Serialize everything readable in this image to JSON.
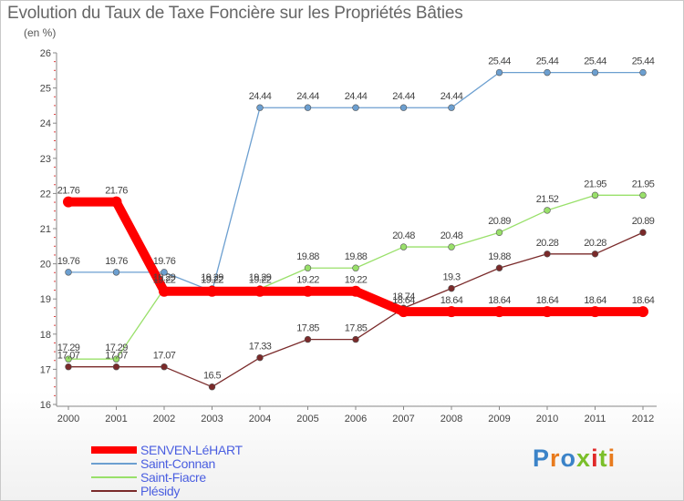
{
  "chart_data": {
    "type": "line",
    "title": "Evolution du Taux de Taxe Foncière sur les Propriétés Bâties",
    "unit_label": "(en %)",
    "x": [
      "2000",
      "2001",
      "2002",
      "2003",
      "2004",
      "2005",
      "2006",
      "2007",
      "2008",
      "2009",
      "2010",
      "2011",
      "2012"
    ],
    "ylim": [
      16,
      26
    ],
    "yticks": [
      "16",
      "17",
      "18",
      "19",
      "20",
      "21",
      "22",
      "23",
      "24",
      "25",
      "26"
    ],
    "grid": false,
    "legend_position": "bottom-left",
    "series": [
      {
        "name": "SENVEN-LéHART",
        "color": "#ff0000",
        "values": [
          21.76,
          21.76,
          19.22,
          19.22,
          19.22,
          19.22,
          19.22,
          18.64,
          18.64,
          18.64,
          18.64,
          18.64,
          18.64
        ],
        "labels": [
          "21.76",
          "21.76",
          "19.22",
          "19.22",
          "19.22",
          "19.22",
          "19.22",
          "18.64",
          "18.64",
          "18.64",
          "18.64",
          "18.64",
          "18.64"
        ]
      },
      {
        "name": "Saint-Connan",
        "color": "#6c9fd0",
        "values": [
          19.76,
          19.76,
          19.76,
          19.22,
          24.44,
          24.44,
          24.44,
          24.44,
          24.44,
          25.44,
          25.44,
          25.44,
          25.44
        ],
        "labels": [
          "19.76",
          "19.76",
          "19.76",
          "19.22",
          "24.44",
          "24.44",
          "24.44",
          "24.44",
          "24.44",
          "25.44",
          "25.44",
          "25.44",
          "25.44"
        ]
      },
      {
        "name": "Saint-Fiacre",
        "color": "#99e06a",
        "values": [
          17.29,
          17.29,
          19.29,
          19.29,
          19.29,
          19.88,
          19.88,
          20.48,
          20.48,
          20.89,
          21.52,
          21.95,
          21.95
        ],
        "labels": [
          "17.29",
          "17.29",
          "19.29",
          "19.29",
          "19.29",
          "19.88",
          "19.88",
          "20.48",
          "20.48",
          "20.89",
          "21.52",
          "21.95",
          "21.95"
        ]
      },
      {
        "name": "Plésidy",
        "color": "#7a2a2a",
        "values": [
          17.07,
          17.07,
          17.07,
          16.5,
          17.33,
          17.85,
          17.85,
          18.74,
          19.3,
          19.88,
          20.28,
          20.28,
          20.89
        ],
        "labels": [
          "17.07",
          "17.07",
          "17.07",
          "16.5",
          "17.33",
          "17.85",
          "17.85",
          "18.74",
          "19.3",
          "19.88",
          "20.28",
          "20.28",
          "20.89"
        ]
      }
    ]
  },
  "logo": {
    "text": "Proxiti",
    "letters": [
      {
        "ch": "P",
        "color": "#3b83c8"
      },
      {
        "ch": "r",
        "color": "#e87b1e"
      },
      {
        "ch": "o",
        "color": "#3b83c8"
      },
      {
        "ch": "x",
        "color": "#7bbf2a"
      },
      {
        "ch": "i",
        "color": "#e02a2a"
      },
      {
        "ch": "t",
        "color": "#7bbf2a"
      },
      {
        "ch": "i",
        "color": "#e87b1e"
      }
    ]
  }
}
